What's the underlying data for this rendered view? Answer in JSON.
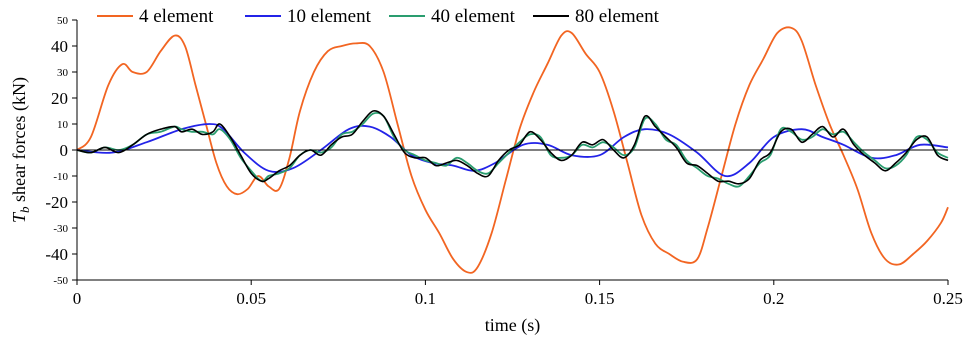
{
  "chart_data": {
    "type": "line",
    "xlabel": "time (s)",
    "ylabel_symbol": "T",
    "ylabel_subscript": "b",
    "ylabel_rest": " shear forces (kN)",
    "xlim": [
      0,
      0.25
    ],
    "ylim": [
      -50,
      50
    ],
    "xticks": [
      0,
      0.05,
      0.1,
      0.15,
      0.2,
      0.25
    ],
    "xtick_labels": [
      "0",
      "0.05",
      "0.1",
      "0.15",
      "0.2",
      "0.25"
    ],
    "yticks": [
      50,
      40,
      30,
      20,
      10,
      0,
      -10,
      -20,
      -30,
      -40,
      -50
    ],
    "ytick_labels": [
      "50",
      "40",
      "30",
      "20",
      "10",
      "0",
      "-10",
      "-20",
      "-30",
      "-40",
      "-50"
    ],
    "ytick_major": [
      40,
      20,
      0,
      -20,
      -40
    ],
    "grid": false,
    "legend_position": "top",
    "series": [
      {
        "name": "4 element",
        "color": "#f26522",
        "x": [
          0,
          0.004,
          0.009,
          0.013,
          0.016,
          0.02,
          0.024,
          0.028,
          0.031,
          0.034,
          0.037,
          0.04,
          0.043,
          0.046,
          0.049,
          0.052,
          0.055,
          0.058,
          0.061,
          0.064,
          0.068,
          0.072,
          0.076,
          0.08,
          0.084,
          0.088,
          0.092,
          0.096,
          0.1,
          0.104,
          0.108,
          0.112,
          0.115,
          0.119,
          0.123,
          0.127,
          0.131,
          0.135,
          0.139,
          0.142,
          0.146,
          0.15,
          0.154,
          0.158,
          0.162,
          0.166,
          0.17,
          0.174,
          0.178,
          0.181,
          0.185,
          0.189,
          0.193,
          0.197,
          0.201,
          0.205,
          0.208,
          0.212,
          0.216,
          0.22,
          0.224,
          0.228,
          0.232,
          0.236,
          0.24,
          0.244,
          0.248,
          0.25
        ],
        "y": [
          0,
          5,
          25,
          33,
          30,
          30,
          38,
          44,
          40,
          25,
          10,
          -5,
          -14,
          -17,
          -15,
          -10,
          -14,
          -15,
          -3,
          15,
          30,
          38,
          40,
          41,
          40,
          30,
          10,
          -10,
          -23,
          -32,
          -42,
          -47,
          -45,
          -32,
          -12,
          8,
          22,
          33,
          44,
          45,
          37,
          30,
          15,
          -5,
          -25,
          -36,
          -40,
          -43,
          -42,
          -30,
          -10,
          10,
          25,
          35,
          45,
          47,
          42,
          25,
          10,
          -2,
          -15,
          -32,
          -42,
          -44,
          -40,
          -35,
          -28,
          -22
        ]
      },
      {
        "name": "10 element",
        "color": "#2323e8",
        "x": [
          0,
          0.01,
          0.02,
          0.03,
          0.038,
          0.042,
          0.048,
          0.055,
          0.062,
          0.07,
          0.078,
          0.084,
          0.09,
          0.096,
          0.102,
          0.108,
          0.114,
          0.12,
          0.128,
          0.135,
          0.142,
          0.15,
          0.157,
          0.163,
          0.17,
          0.178,
          0.186,
          0.193,
          0.2,
          0.208,
          0.214,
          0.22,
          0.228,
          0.235,
          0.242,
          0.25
        ],
        "y": [
          0,
          -1,
          3,
          8,
          10,
          8,
          -1,
          -8,
          -7,
          0,
          8,
          9,
          5,
          -2,
          -5,
          -6,
          -8,
          -5,
          2,
          2,
          -2,
          -2,
          5,
          8,
          6,
          -1,
          -10,
          -5,
          5,
          8,
          5,
          2,
          -3,
          -2,
          2,
          1
        ]
      },
      {
        "name": "40 element",
        "color": "#2a9d6f",
        "x": [
          0,
          0.004,
          0.008,
          0.012,
          0.016,
          0.02,
          0.024,
          0.028,
          0.03,
          0.033,
          0.036,
          0.039,
          0.041,
          0.044,
          0.047,
          0.05,
          0.053,
          0.055,
          0.058,
          0.061,
          0.064,
          0.067,
          0.07,
          0.073,
          0.076,
          0.079,
          0.082,
          0.085,
          0.088,
          0.091,
          0.094,
          0.097,
          0.1,
          0.103,
          0.106,
          0.109,
          0.112,
          0.115,
          0.118,
          0.121,
          0.124,
          0.127,
          0.13,
          0.133,
          0.136,
          0.139,
          0.142,
          0.145,
          0.148,
          0.151,
          0.154,
          0.157,
          0.16,
          0.163,
          0.166,
          0.169,
          0.172,
          0.175,
          0.178,
          0.181,
          0.184,
          0.187,
          0.19,
          0.193,
          0.196,
          0.199,
          0.202,
          0.205,
          0.208,
          0.211,
          0.214,
          0.217,
          0.22,
          0.223,
          0.226,
          0.229,
          0.232,
          0.235,
          0.238,
          0.241,
          0.244,
          0.247,
          0.25
        ],
        "y": [
          0,
          -1,
          1,
          0,
          2,
          6,
          7,
          9,
          8,
          7,
          7,
          6,
          8,
          4,
          -3,
          -8,
          -12,
          -10,
          -9,
          -7,
          -2,
          0,
          -1,
          1,
          6,
          7,
          10,
          14,
          13,
          5,
          0,
          -2,
          -4,
          -5,
          -6,
          -3,
          -5,
          -8,
          -9,
          -5,
          -1,
          3,
          6,
          5,
          -2,
          -3,
          -2,
          2,
          1,
          3,
          1,
          -2,
          1,
          12,
          10,
          4,
          2,
          -4,
          -7,
          -10,
          -11,
          -13,
          -14,
          -10,
          -5,
          -2,
          8,
          7,
          4,
          5,
          8,
          6,
          7,
          3,
          -1,
          -4,
          -7,
          -6,
          -2,
          5,
          4,
          -1,
          -3
        ]
      },
      {
        "name": "80 element",
        "color": "#000000",
        "x": [
          0,
          0.004,
          0.008,
          0.012,
          0.016,
          0.02,
          0.024,
          0.028,
          0.03,
          0.033,
          0.036,
          0.039,
          0.041,
          0.044,
          0.047,
          0.05,
          0.053,
          0.055,
          0.058,
          0.061,
          0.064,
          0.067,
          0.07,
          0.073,
          0.076,
          0.079,
          0.082,
          0.085,
          0.088,
          0.091,
          0.094,
          0.097,
          0.1,
          0.103,
          0.106,
          0.109,
          0.112,
          0.115,
          0.118,
          0.121,
          0.124,
          0.127,
          0.13,
          0.133,
          0.136,
          0.139,
          0.142,
          0.145,
          0.148,
          0.151,
          0.154,
          0.157,
          0.16,
          0.163,
          0.166,
          0.169,
          0.172,
          0.175,
          0.178,
          0.181,
          0.184,
          0.187,
          0.19,
          0.193,
          0.196,
          0.199,
          0.202,
          0.205,
          0.208,
          0.211,
          0.214,
          0.217,
          0.22,
          0.223,
          0.226,
          0.229,
          0.232,
          0.235,
          0.238,
          0.241,
          0.244,
          0.247,
          0.25
        ],
        "y": [
          0,
          -1,
          1,
          -1,
          2,
          6,
          8,
          9,
          7,
          8,
          6,
          7,
          10,
          5,
          -2,
          -9,
          -12,
          -11,
          -8,
          -6,
          -2,
          0,
          -2,
          2,
          5,
          6,
          11,
          15,
          13,
          6,
          -1,
          -3,
          -3,
          -6,
          -5,
          -4,
          -6,
          -9,
          -10,
          -4,
          0,
          2,
          7,
          4,
          -1,
          -4,
          -2,
          3,
          2,
          4,
          0,
          -3,
          2,
          13,
          9,
          5,
          1,
          -5,
          -6,
          -9,
          -12,
          -12,
          -13,
          -11,
          -4,
          -1,
          7,
          8,
          3,
          6,
          9,
          5,
          8,
          2,
          -2,
          -5,
          -8,
          -5,
          -1,
          4,
          5,
          -2,
          -4
        ]
      }
    ]
  }
}
